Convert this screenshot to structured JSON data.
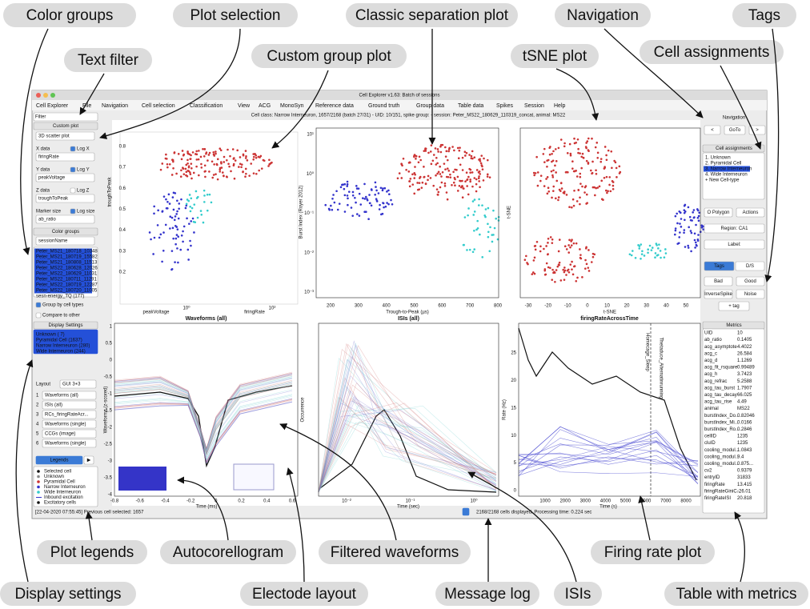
{
  "callouts": [
    "Color groups",
    "Plot selection",
    "Classic separation plot",
    "Navigation",
    "Tags",
    "Text filter",
    "Custom group plot",
    "tSNE plot",
    "Cell assignments",
    "Plot legends",
    "Autocorellogram",
    "Filtered waveforms",
    "Firing rate plot",
    "Display settings",
    "Electode layout",
    "Message log",
    "ISIs",
    "Table with metrics"
  ],
  "window": {
    "title": "Cell Explorer v1.63: Batch of sessions",
    "menu": [
      "Cell Explorer",
      "File",
      "Navigation",
      "Cell selection",
      "Classification",
      "View",
      "ACG",
      "MonoSyn",
      "Reference data",
      "Ground truth",
      "Group data",
      "Table data",
      "Spikes",
      "Session",
      "Help"
    ],
    "info": "Cell class: Narrow Interneuron, 1657/2168 (batch 27/31) - UID: 10/151, spike group: - session: Peter_MS22_180629_110319_concat, animal: MS22",
    "message": "[22-04-2020 07:55:45] Previous cell selected: 1657",
    "status": "2168/2168 cells displayed. Processing time: 0.224 sec"
  },
  "left_panel": {
    "filter": "Filter",
    "custom_plot": "Custom plot",
    "plot_type": "3D scatter plot",
    "x_data": "X data",
    "log_x": "Log X",
    "x_value": "firingRate",
    "y_data": "Y data",
    "log_y": "Log Y",
    "y_value": "peakVoltage",
    "z_data": "Z data",
    "log_z": "Log Z",
    "z_value": "troughToPeak",
    "marker_size": "Marker size",
    "log_size": "Log size",
    "size_value": "ab_ratio",
    "color_groups": "Color groups",
    "group_by": "sessionName",
    "groups": [
      "Peter_MS21_180718_10348",
      "Peter_MS21_180719_15582",
      "Peter_MS21_180808_11513",
      "Peter_MS22_180628_12026",
      "Peter_MS22_180629_11031",
      "Peter_MS22_180711_11291",
      "Peter_MS22_180719_12287",
      "Peter_MS22_180720_11005",
      "sesn-energy_TQ (177)"
    ],
    "group_by_cell_types": "Group by cell types",
    "compare": "Compare to other",
    "display_settings": "Display Settings",
    "cell_types": [
      "Unknown ( 7)",
      "Pyramidal Cell (1637)",
      "Narrow Interneuron (280)",
      "Wide Interneuron (244)"
    ],
    "layout": "Layout",
    "layout_value": "GUI 3+3",
    "plots": [
      [
        "1",
        "Waveforms (all)"
      ],
      [
        "2",
        "ISIs (all)"
      ],
      [
        "3",
        "RCs_firingRateAcr..."
      ],
      [
        "4",
        "Waveforms (single)"
      ],
      [
        "5",
        "CCGs (image)"
      ],
      [
        "6",
        "Waveforms (single)"
      ]
    ],
    "legends": "Legends",
    "legend_arrow": "▶",
    "legend": [
      "Selected cell",
      "Unknown",
      "Pyramidal Cell",
      "Narrow Interneuron",
      "Wide Interneuron",
      "Inbound excitation",
      "Excitatory cells"
    ]
  },
  "right_panel": {
    "navigation": "Navigation",
    "prev": "<",
    "goto": "GoTo",
    "next": ">",
    "cell_assignments": "Cell assignments",
    "assignments": [
      "1. Unknown",
      "2. Pyramidal Cell",
      "3. Narrow Interneuron",
      "4. Wide Interneuron",
      "+  New Cell-type"
    ],
    "polygon": "O Polygon",
    "actions": "Actions",
    "region": "Region: CA1",
    "label": "Label:",
    "tags": "Tags",
    "ds": "D/S",
    "tag_buttons": [
      "Bad",
      "Good",
      "InverseSpike",
      "Noise"
    ],
    "add_tag": "+ tag",
    "metrics": "Metrics",
    "table": [
      [
        "UID",
        "10"
      ],
      [
        "ab_ratio",
        "0.1405"
      ],
      [
        "acg_asymptote",
        "4.4022"
      ],
      [
        "acg_c",
        "26.584"
      ],
      [
        "acg_d",
        "1.1269"
      ],
      [
        "acg_fit_rsquare",
        "0.99489"
      ],
      [
        "acg_h",
        "3.7423"
      ],
      [
        "acg_refrac",
        "5.2588"
      ],
      [
        "acg_tau_burst",
        "1.7907"
      ],
      [
        "acg_tau_decay",
        "66.025"
      ],
      [
        "acg_tau_rise",
        "4.49"
      ],
      [
        "animal",
        "MS22"
      ],
      [
        "burstIndex_Do...",
        "0.82046"
      ],
      [
        "burstIndex_Mi...",
        "0.0166"
      ],
      [
        "burstIndex_Ro...",
        "0.2846"
      ],
      [
        "cellID",
        "1235"
      ],
      [
        "cluID",
        "1235"
      ],
      [
        "cooling_modul...",
        "1.0843"
      ],
      [
        "cooling_modul...",
        "9.4"
      ],
      [
        "cooling_modul...",
        "0.875..."
      ],
      [
        "cv2",
        "0.9379"
      ],
      [
        "entryID",
        "31833"
      ],
      [
        "firingRate",
        "13.415"
      ],
      [
        "firingRateGiniC...",
        "-26.01"
      ],
      [
        "firingRateISI",
        "20.818"
      ]
    ]
  },
  "plots": [
    {
      "xlabel": "peakVoltage",
      "ylabel": "firingRate",
      "zlabel": "troughToPeak",
      "zticks": [
        "0.8",
        "0.7",
        "0.6",
        "0.5",
        "0.4",
        "0.3",
        "0.2"
      ],
      "xticks": [
        "10⁰",
        "10²"
      ]
    },
    {
      "xlabel": "Trough-to-Peak (µs)",
      "ylabel": "Burst Index (Royer 2012)",
      "xticks": [
        "200",
        "300",
        "400",
        "500",
        "600",
        "700",
        "800"
      ],
      "yticks": [
        "10¹",
        "10⁰",
        "10⁻¹",
        "10⁻²",
        "10⁻³"
      ]
    },
    {
      "xlabel": "t-SNE",
      "ylabel": "t-SNE",
      "xticks": [
        "-30",
        "-20",
        "-10",
        "0",
        "10",
        "20",
        "30",
        "40",
        "50"
      ]
    },
    {
      "title": "Waveforms (all)",
      "xlabel": "Time (ms)",
      "ylabel": "Waveforms (z-scored)",
      "xticks": [
        "-0.8",
        "-0.6",
        "-0.4",
        "-0.2",
        "0",
        "0.2",
        "0.4",
        "0.6"
      ],
      "yticks": [
        "1",
        "0.5",
        "0",
        "-0.5",
        "-1",
        "-1.5",
        "-2",
        "-2.5",
        "-3",
        "-3.5",
        "-4"
      ]
    },
    {
      "title": "ISIs (all)",
      "xlabel": "Time (sec)",
      "ylabel": "Occurrence",
      "xticks": [
        "10⁻²",
        "10⁻¹",
        "10⁰"
      ]
    },
    {
      "title": "firingRateAcrossTime",
      "xlabel": "Time (s)",
      "ylabel": "Rate (Hz)",
      "xticks": [
        "1000",
        "2000",
        "3000",
        "4000",
        "5000",
        "6000",
        "7000",
        "8000"
      ],
      "yticks": [
        "25",
        "20",
        "15",
        "10",
        "5",
        "0"
      ],
      "annotations": [
        "Homecage_Sleep",
        "Thetaduce_Alternatinrunning"
      ]
    }
  ]
}
